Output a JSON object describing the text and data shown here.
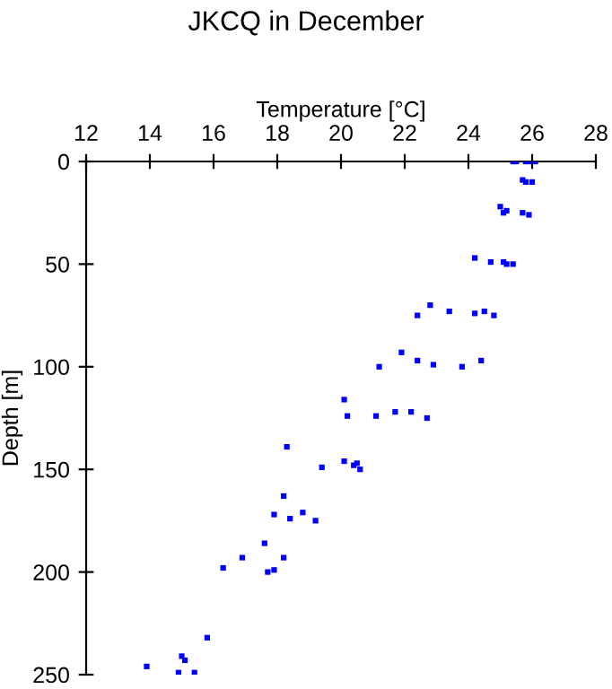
{
  "chart_data": {
    "type": "scatter",
    "title": "JKCQ in December",
    "xlabel": "Temperature [°C]",
    "ylabel": "Depth [m]",
    "x": [
      25.4,
      25.5,
      25.8,
      25.9,
      26.1,
      25.7,
      25.8,
      26.0,
      25.0,
      25.1,
      25.2,
      25.7,
      25.9,
      24.2,
      24.7,
      25.1,
      25.2,
      25.4,
      22.8,
      22.4,
      23.4,
      24.2,
      24.5,
      24.8,
      21.9,
      22.4,
      22.9,
      23.8,
      24.4,
      21.2,
      20.1,
      20.2,
      21.1,
      21.7,
      22.2,
      22.7,
      18.3,
      19.4,
      20.1,
      20.5,
      20.6,
      20.4,
      18.2,
      17.9,
      18.4,
      18.8,
      19.2,
      17.6,
      16.9,
      18.2,
      17.9,
      17.7,
      16.3,
      15.8,
      15.0,
      15.1,
      14.9,
      15.4,
      13.9
    ],
    "values": [
      0,
      0,
      0,
      0,
      0,
      9,
      10,
      10,
      22,
      25,
      24,
      25,
      26,
      47,
      49,
      49,
      50,
      50,
      70,
      75,
      73,
      74,
      73,
      75,
      93,
      97,
      99,
      100,
      97,
      100,
      116,
      124,
      124,
      122,
      122,
      125,
      139,
      149,
      146,
      147,
      150,
      148,
      163,
      172,
      174,
      171,
      175,
      186,
      193,
      193,
      199,
      200,
      198,
      232,
      241,
      243,
      249,
      249,
      246
    ],
    "color": "#0000ff",
    "marker": "square",
    "xlim": [
      12,
      28
    ],
    "xticks": [
      12,
      14,
      16,
      18,
      20,
      22,
      24,
      26,
      28
    ],
    "ylim": [
      250,
      0
    ],
    "yticks": [
      0,
      50,
      100,
      150,
      200,
      250
    ],
    "grid": false
  }
}
